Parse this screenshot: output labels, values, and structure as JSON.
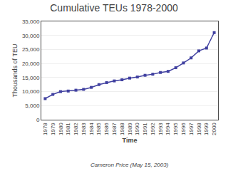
{
  "chart_data": {
    "type": "line",
    "title": "Cumulative TEUs 1978-2000",
    "xlabel": "Time",
    "ylabel": "Thousands of TEU",
    "footnote": "Cameron Price (May 15, 2003)",
    "x": [
      1978,
      1979,
      1980,
      1981,
      1982,
      1983,
      1984,
      1985,
      1986,
      1987,
      1988,
      1989,
      1990,
      1991,
      1992,
      1993,
      1994,
      1995,
      1996,
      1997,
      1998,
      1999,
      2000
    ],
    "values": [
      7500,
      9000,
      10000,
      10200,
      10500,
      10800,
      11500,
      12500,
      13200,
      13800,
      14200,
      14800,
      15200,
      15800,
      16200,
      16800,
      17200,
      18500,
      20200,
      22000,
      24500,
      25500,
      31000
    ],
    "color": "#4040a0",
    "marker": "square",
    "xlim": [
      1977.5,
      2000.5
    ],
    "xticks": [
      1978,
      1979,
      1980,
      1981,
      1982,
      1983,
      1984,
      1985,
      1986,
      1987,
      1988,
      1989,
      1990,
      1991,
      1992,
      1993,
      1994,
      1995,
      1996,
      1997,
      1998,
      1999,
      2000
    ],
    "ylim": [
      0,
      35000
    ],
    "yticks": [
      0,
      {
        "value": 5000,
        "label": "5,000"
      },
      {
        "value": 10000,
        "label": "10,000"
      },
      {
        "value": 15000,
        "label": "15,000"
      },
      {
        "value": 20000,
        "label": "20,000"
      },
      {
        "value": 25000,
        "label": "25,000"
      },
      {
        "value": 30000,
        "label": "30,000"
      },
      {
        "value": 35000,
        "label": "35,000"
      }
    ],
    "grid": true
  }
}
